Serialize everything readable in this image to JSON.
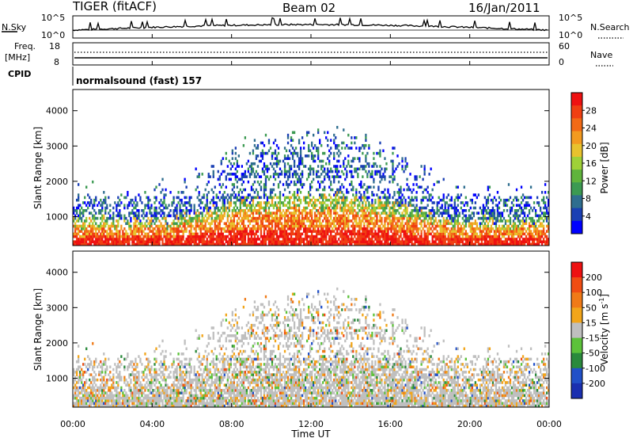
{
  "header": {
    "title": "TIGER (fitACF)",
    "beam": "Beam 02",
    "date": "16/Jan/2011"
  },
  "top_panels": {
    "nsky_label": "N.Sky",
    "nsky_ticks": [
      "10^5",
      "10^0"
    ],
    "nsearch_label": "N.Search",
    "nsearch_ticks": [
      "10^5",
      "10^0"
    ],
    "freq_label": "Freq.",
    "freq_unit": "[MHz]",
    "freq_ticks": [
      "18",
      "8"
    ],
    "nave_label": "Nave",
    "nave_ticks": [
      "60",
      "0"
    ],
    "cpid_label": "CPID",
    "cpid_text": "normalsound (fast) 157"
  },
  "chart_data": [
    {
      "type": "heatmap",
      "name": "power",
      "ylabel": "Slant Range [km]",
      "yticks": [
        "1000",
        "2000",
        "3000",
        "4000"
      ],
      "ylim": [
        180,
        4600
      ],
      "colorbar": {
        "label": "Power [dB]",
        "ticks": [
          "4",
          "8",
          "12",
          "16",
          "20",
          "24",
          "28"
        ],
        "colors": [
          "#0000ff",
          "#1a3fb4",
          "#2f6e8f",
          "#3c9a52",
          "#60b43c",
          "#9fd138",
          "#e8c22d",
          "#f39a1f",
          "#f26a16",
          "#f03f12",
          "#ef1111"
        ]
      }
    },
    {
      "type": "heatmap",
      "name": "velocity",
      "ylabel": "Slant Range [km]",
      "yticks": [
        "1000",
        "2000",
        "3000",
        "4000"
      ],
      "ylim": [
        180,
        4600
      ],
      "xlabel": "Time UT",
      "xticks": [
        "00:00",
        "04:00",
        "08:00",
        "12:00",
        "16:00",
        "20:00",
        "00:00"
      ],
      "colorbar": {
        "label": "Velocity [m s",
        "label_sup": "-1",
        "label_end": "]",
        "ticks": [
          "200",
          "100",
          "50",
          "15",
          "-15",
          "-50",
          "-100",
          "-200"
        ],
        "colors": [
          "#1a2fb0",
          "#2150c8",
          "#2a8a3c",
          "#5cc23a",
          "#bfbfbf",
          "#f2a51a",
          "#f07a17",
          "#f04d13",
          "#ee1111"
        ]
      }
    }
  ]
}
